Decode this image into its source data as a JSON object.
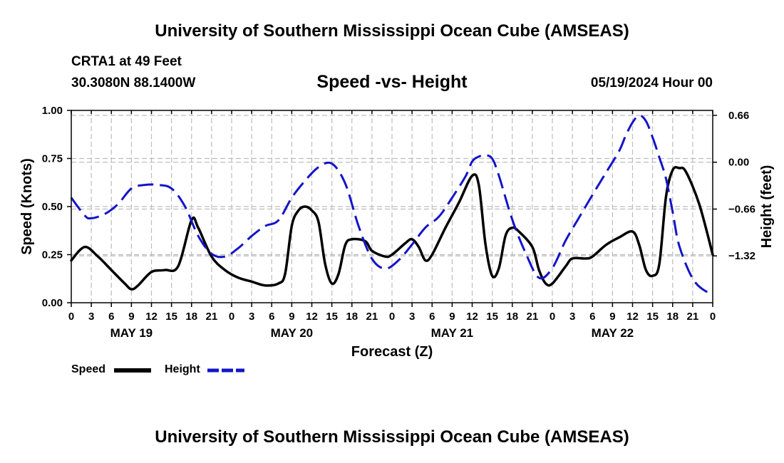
{
  "page": {
    "title_top": "University of Southern Mississippi Ocean Cube (AMSEAS)",
    "title_bottom": "University of Southern Mississippi Ocean Cube (AMSEAS)",
    "station_line": "CRTA1 at 49 Feet",
    "coords_line": "30.3080N  88.1400W",
    "datetime_line": "05/19/2024 Hour 00"
  },
  "chart_data": {
    "type": "line",
    "title": "Speed -vs- Height",
    "xlabel": "Forecast (Z)",
    "ylabel_left": "Speed (Knots)",
    "ylabel_right": "Height (feet)",
    "x_range_hours": [
      0,
      96
    ],
    "x_tick_step_hours": 3,
    "x_tick_labels": [
      "0",
      "3",
      "6",
      "9",
      "12",
      "15",
      "18",
      "21",
      "0",
      "3",
      "6",
      "9",
      "12",
      "15",
      "18",
      "21",
      "0",
      "3",
      "6",
      "9",
      "12",
      "15",
      "18",
      "21",
      "0",
      "3",
      "6",
      "9",
      "12",
      "15",
      "18",
      "21",
      "0"
    ],
    "day_labels": [
      {
        "label": "MAY 19",
        "hour": 9
      },
      {
        "label": "MAY 20",
        "hour": 33
      },
      {
        "label": "MAY 21",
        "hour": 57
      },
      {
        "label": "MAY 22",
        "hour": 81
      }
    ],
    "left_axis": {
      "ylim": [
        0,
        1
      ],
      "ticks": [
        0,
        0.25,
        0.5,
        0.75,
        1.0
      ],
      "tick_labels": [
        "0.00",
        "0.25",
        "0.50",
        "0.75",
        "1.00"
      ]
    },
    "right_axis": {
      "ylim": [
        -1.98,
        0.73
      ],
      "ticks": [
        0.66,
        0.0,
        -0.66,
        -1.32
      ],
      "tick_labels": [
        "0.66",
        "0.00",
        "−0.66",
        "−1.32"
      ]
    },
    "grid": true,
    "legend": [
      {
        "label": "Speed",
        "color": "#000000",
        "style": "solid"
      },
      {
        "label": "Height",
        "color": "#1414c8",
        "style": "dashed"
      }
    ],
    "series": [
      {
        "name": "Speed",
        "axis": "left",
        "color": "#000000",
        "points": [
          [
            0,
            0.22
          ],
          [
            2,
            0.29
          ],
          [
            4,
            0.24
          ],
          [
            6,
            0.17
          ],
          [
            8,
            0.1
          ],
          [
            9,
            0.07
          ],
          [
            10,
            0.09
          ],
          [
            12,
            0.16
          ],
          [
            14,
            0.17
          ],
          [
            16,
            0.19
          ],
          [
            18,
            0.43
          ],
          [
            19,
            0.39
          ],
          [
            21,
            0.24
          ],
          [
            23,
            0.17
          ],
          [
            25,
            0.13
          ],
          [
            27,
            0.11
          ],
          [
            29,
            0.09
          ],
          [
            31,
            0.1
          ],
          [
            32,
            0.15
          ],
          [
            33,
            0.4
          ],
          [
            34,
            0.48
          ],
          [
            35,
            0.5
          ],
          [
            36,
            0.48
          ],
          [
            37,
            0.42
          ],
          [
            38,
            0.2
          ],
          [
            39,
            0.1
          ],
          [
            40,
            0.15
          ],
          [
            41,
            0.3
          ],
          [
            42,
            0.33
          ],
          [
            44,
            0.32
          ],
          [
            45,
            0.27
          ],
          [
            47,
            0.24
          ],
          [
            48,
            0.25
          ],
          [
            50,
            0.31
          ],
          [
            51,
            0.33
          ],
          [
            52,
            0.29
          ],
          [
            53,
            0.22
          ],
          [
            54,
            0.25
          ],
          [
            56,
            0.39
          ],
          [
            58,
            0.52
          ],
          [
            60,
            0.66
          ],
          [
            61,
            0.61
          ],
          [
            62,
            0.3
          ],
          [
            63,
            0.14
          ],
          [
            64,
            0.18
          ],
          [
            65,
            0.35
          ],
          [
            66,
            0.39
          ],
          [
            67,
            0.37
          ],
          [
            69,
            0.29
          ],
          [
            70,
            0.17
          ],
          [
            71,
            0.1
          ],
          [
            72,
            0.1
          ],
          [
            74,
            0.19
          ],
          [
            75,
            0.23
          ],
          [
            77,
            0.23
          ],
          [
            78,
            0.24
          ],
          [
            80,
            0.3
          ],
          [
            82,
            0.34
          ],
          [
            84,
            0.37
          ],
          [
            85,
            0.3
          ],
          [
            86,
            0.17
          ],
          [
            87,
            0.14
          ],
          [
            88,
            0.2
          ],
          [
            89,
            0.55
          ],
          [
            90,
            0.69
          ],
          [
            91,
            0.7
          ],
          [
            92,
            0.68
          ],
          [
            94,
            0.51
          ],
          [
            96,
            0.25
          ]
        ]
      },
      {
        "name": "Height",
        "axis": "right",
        "color": "#1414c8",
        "points": [
          [
            0,
            -0.5
          ],
          [
            2,
            -0.75
          ],
          [
            3,
            -0.79
          ],
          [
            5,
            -0.73
          ],
          [
            7,
            -0.59
          ],
          [
            9,
            -0.37
          ],
          [
            11,
            -0.32
          ],
          [
            13,
            -0.32
          ],
          [
            15,
            -0.37
          ],
          [
            17,
            -0.62
          ],
          [
            19,
            -1.04
          ],
          [
            21,
            -1.29
          ],
          [
            23,
            -1.33
          ],
          [
            25,
            -1.21
          ],
          [
            27,
            -1.04
          ],
          [
            29,
            -0.9
          ],
          [
            31,
            -0.82
          ],
          [
            33,
            -0.5
          ],
          [
            35,
            -0.26
          ],
          [
            37,
            -0.07
          ],
          [
            39,
            -0.02
          ],
          [
            41,
            -0.3
          ],
          [
            43,
            -0.9
          ],
          [
            45,
            -1.36
          ],
          [
            47,
            -1.5
          ],
          [
            49,
            -1.38
          ],
          [
            51,
            -1.16
          ],
          [
            53,
            -0.92
          ],
          [
            55,
            -0.77
          ],
          [
            57,
            -0.5
          ],
          [
            59,
            -0.2
          ],
          [
            60,
            0.01
          ],
          [
            61,
            0.08
          ],
          [
            62,
            0.1
          ],
          [
            63,
            0.05
          ],
          [
            64,
            -0.19
          ],
          [
            66,
            -0.81
          ],
          [
            68,
            -1.28
          ],
          [
            70,
            -1.63
          ],
          [
            72,
            -1.49
          ],
          [
            74,
            -1.1
          ],
          [
            76,
            -0.78
          ],
          [
            78,
            -0.46
          ],
          [
            80,
            -0.15
          ],
          [
            82,
            0.16
          ],
          [
            83,
            0.38
          ],
          [
            84,
            0.56
          ],
          [
            85,
            0.66
          ],
          [
            86,
            0.58
          ],
          [
            87,
            0.35
          ],
          [
            88,
            0.07
          ],
          [
            89,
            -0.23
          ],
          [
            90,
            -0.7
          ],
          [
            91,
            -1.18
          ],
          [
            93,
            -1.64
          ],
          [
            95,
            -1.82
          ],
          [
            96,
            -1.8
          ]
        ]
      }
    ]
  }
}
